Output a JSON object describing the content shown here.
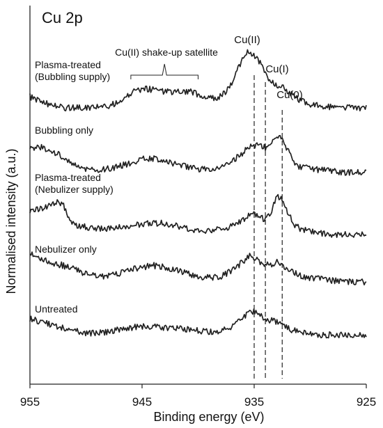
{
  "chart_data": {
    "type": "line",
    "title": "Cu 2p",
    "xlabel": "Binding energy (eV)",
    "ylabel": "Normalised intensity (a.u.)",
    "xlim": [
      955,
      925
    ],
    "x_reversed": true,
    "x_ticks": [
      "955",
      "945",
      "935",
      "925"
    ],
    "y_ticks_shown": false,
    "grid": false,
    "legend": "none",
    "line_color": "#222222",
    "series": [
      {
        "name": "Plasma-treated\n(Bubbling supply)",
        "x": [
          955.0,
          954.0,
          953.0,
          952.0,
          951.0,
          950.0,
          949.0,
          948.0,
          947.0,
          946.5,
          946.0,
          945.5,
          945.0,
          944.5,
          944.0,
          943.5,
          943.0,
          942.5,
          942.0,
          941.5,
          941.0,
          940.5,
          940.0,
          939.5,
          939.0,
          938.5,
          938.0,
          937.5,
          937.0,
          936.5,
          936.0,
          935.5,
          935.0,
          934.5,
          934.0,
          933.5,
          933.0,
          932.5,
          932.0,
          931.5,
          931.0,
          930.5,
          930.0,
          929.0,
          928.0,
          927.0,
          926.0,
          925.0
        ],
        "y": [
          0.6,
          0.3,
          0.15,
          0.0,
          0.0,
          0.0,
          0.05,
          0.1,
          0.3,
          0.55,
          0.8,
          0.95,
          1.0,
          1.0,
          0.95,
          0.9,
          0.85,
          0.85,
          0.88,
          0.9,
          0.88,
          0.82,
          0.72,
          0.62,
          0.5,
          0.5,
          0.6,
          0.85,
          1.3,
          2.0,
          2.7,
          3.0,
          2.85,
          2.4,
          1.8,
          1.4,
          1.2,
          1.1,
          0.9,
          0.65,
          0.45,
          0.3,
          0.2,
          0.1,
          0.05,
          0.0,
          0.0,
          0.0
        ]
      },
      {
        "name": "Bubbling only",
        "x": [
          955.0,
          954.0,
          953.0,
          952.0,
          951.0,
          950.0,
          949.0,
          948.0,
          947.0,
          946.0,
          945.0,
          944.0,
          943.0,
          942.0,
          941.0,
          940.0,
          939.0,
          938.0,
          937.0,
          936.0,
          935.5,
          935.0,
          934.5,
          934.0,
          933.5,
          933.0,
          932.5,
          932.0,
          931.5,
          931.0,
          930.0,
          929.0,
          928.0,
          927.0,
          926.0,
          925.0
        ],
        "y": [
          0.95,
          1.0,
          0.85,
          0.6,
          0.3,
          0.15,
          0.1,
          0.15,
          0.25,
          0.4,
          0.55,
          0.55,
          0.45,
          0.35,
          0.25,
          0.15,
          0.15,
          0.25,
          0.45,
          0.8,
          1.0,
          1.1,
          1.05,
          1.0,
          1.15,
          1.5,
          1.35,
          0.9,
          0.45,
          0.25,
          0.15,
          0.1,
          0.05,
          0.0,
          0.0,
          0.0
        ]
      },
      {
        "name": "Plasma-treated\n(Nebulizer supply)",
        "x": [
          955.0,
          954.0,
          953.0,
          952.5,
          952.0,
          951.5,
          951.0,
          950.0,
          949.0,
          948.0,
          947.0,
          946.0,
          945.0,
          944.0,
          943.0,
          942.0,
          941.0,
          940.0,
          939.0,
          938.0,
          937.0,
          936.0,
          935.5,
          935.0,
          934.5,
          934.0,
          933.5,
          933.0,
          932.5,
          932.0,
          931.5,
          931.0,
          930.0,
          929.0,
          928.0,
          927.0,
          926.0,
          925.0
        ],
        "y": [
          0.95,
          1.05,
          1.2,
          1.35,
          1.15,
          0.65,
          0.35,
          0.3,
          0.25,
          0.25,
          0.3,
          0.35,
          0.4,
          0.45,
          0.45,
          0.35,
          0.25,
          0.15,
          0.15,
          0.2,
          0.35,
          0.6,
          0.75,
          0.8,
          0.7,
          0.6,
          0.9,
          1.55,
          1.4,
          0.9,
          0.45,
          0.25,
          0.1,
          0.05,
          0.0,
          0.0,
          0.0,
          0.0
        ]
      },
      {
        "name": "Nebulizer only",
        "x": [
          955.0,
          954.0,
          953.0,
          952.0,
          951.0,
          950.0,
          949.0,
          948.0,
          947.0,
          946.0,
          945.0,
          944.0,
          943.0,
          942.0,
          941.0,
          940.0,
          939.0,
          938.0,
          937.0,
          936.0,
          935.5,
          935.0,
          934.5,
          934.0,
          933.5,
          933.0,
          932.5,
          932.0,
          931.5,
          931.0,
          930.0,
          929.0,
          928.0,
          927.0,
          926.0,
          925.0
        ],
        "y": [
          1.05,
          0.85,
          0.7,
          0.6,
          0.45,
          0.3,
          0.2,
          0.2,
          0.3,
          0.45,
          0.55,
          0.6,
          0.55,
          0.45,
          0.3,
          0.2,
          0.15,
          0.2,
          0.4,
          0.75,
          0.95,
          0.9,
          0.75,
          0.6,
          0.65,
          0.75,
          0.6,
          0.45,
          0.35,
          0.25,
          0.15,
          0.1,
          0.05,
          0.0,
          0.0,
          0.0
        ]
      },
      {
        "name": "Untreated",
        "x": [
          955.0,
          954.0,
          953.0,
          952.0,
          951.0,
          950.0,
          949.0,
          948.0,
          947.0,
          946.0,
          945.0,
          944.0,
          943.0,
          942.0,
          941.0,
          940.0,
          939.0,
          938.0,
          937.0,
          936.0,
          935.5,
          935.0,
          934.5,
          934.0,
          933.5,
          933.0,
          932.5,
          932.0,
          931.5,
          931.0,
          930.0,
          929.0,
          928.0,
          927.0,
          926.0,
          925.0
        ],
        "y": [
          0.55,
          0.45,
          0.35,
          0.25,
          0.15,
          0.05,
          0.05,
          0.1,
          0.2,
          0.25,
          0.3,
          0.3,
          0.25,
          0.25,
          0.2,
          0.15,
          0.1,
          0.15,
          0.3,
          0.6,
          0.75,
          0.8,
          0.7,
          0.55,
          0.5,
          0.45,
          0.35,
          0.25,
          0.15,
          0.1,
          0.05,
          0.0,
          0.0,
          0.0,
          0.0,
          0.0
        ]
      }
    ],
    "reference_lines": [
      {
        "label": "Cu(II)",
        "x": 935.0
      },
      {
        "label": "Cu(I)",
        "x": 934.0
      },
      {
        "label": "Cu(0)",
        "x": 932.5
      }
    ],
    "bracket": {
      "label": "Cu(II) shake-up  satellite",
      "x_from": 946.0,
      "x_to": 940.0
    }
  }
}
